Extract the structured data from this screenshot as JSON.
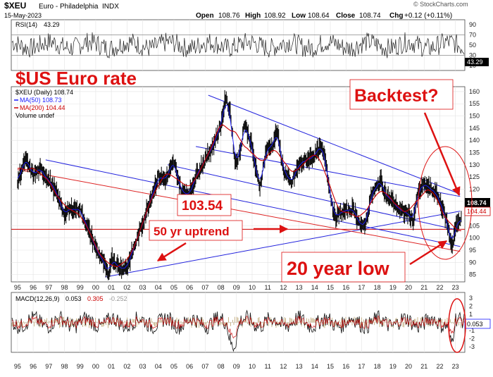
{
  "header": {
    "symbol": "$XEU",
    "name": "Euro - Philadelphia",
    "exchange": "INDX",
    "date": "15-May-2023",
    "open_label": "Open",
    "open": "108.76",
    "high_label": "High",
    "high": "108.92",
    "low_label": "Low",
    "low": "108.64",
    "close_label": "Close",
    "close": "108.74",
    "chg_label": "Chg",
    "chg": "+0.12 (+0.11%)",
    "brand": "© StockCharts.com"
  },
  "rsi": {
    "label": "RSI(14)",
    "value": "43.29",
    "ticks": [
      "90",
      "70",
      "50",
      "30",
      "10"
    ],
    "badge": "43.29",
    "overbought": 70,
    "oversold": 30
  },
  "main": {
    "legend_symbol": "$XEU (Daily) 108.74",
    "legend_ma50": "MA(50) 108.73",
    "legend_ma200": "MA(200) 104.44",
    "legend_volume": "Volume undef",
    "price_badge": "108.74",
    "ma200_badge": "104.44",
    "ticks": [
      "160",
      "155",
      "150",
      "145",
      "140",
      "135",
      "130",
      "125",
      "120",
      "115",
      "110",
      "105",
      "100",
      "95",
      "90",
      "85"
    ]
  },
  "annotations": {
    "title": "$US Euro  rate",
    "backtest": "Backtest?",
    "level": "103.54",
    "uptrend": "50 yr uptrend",
    "low": "20 year low"
  },
  "macd": {
    "label": "MACD(12,26,9)",
    "macd": "0.053",
    "signal": "0.305",
    "hist": "-0.252",
    "ticks": [
      "3",
      "2",
      "1",
      "0",
      "-1",
      "-2",
      "-3"
    ],
    "badge": "0.053"
  },
  "xaxis": {
    "labels": [
      "95",
      "96",
      "97",
      "98",
      "99",
      "00",
      "01",
      "02",
      "03",
      "04",
      "05",
      "06",
      "07",
      "08",
      "09",
      "10",
      "11",
      "12",
      "13",
      "14",
      "15",
      "16",
      "17",
      "18",
      "19",
      "20",
      "21",
      "22",
      "23"
    ]
  },
  "colors": {
    "title_red": "#dd1111",
    "trend_blue": "#2222dd",
    "trend_red": "#dd2222",
    "ma50": "#1a1aff",
    "ma200": "#cc0000"
  },
  "chart_data": {
    "type": "line",
    "title": "$US Euro  rate",
    "series": [
      {
        "name": "$XEU",
        "x": [
          1995.0,
          1995.5,
          1996.0,
          1996.5,
          1997.0,
          1997.5,
          1998.0,
          1998.5,
          1999.0,
          1999.5,
          2000.0,
          2000.5,
          2000.8,
          2001.0,
          2001.5,
          2002.0,
          2002.5,
          2003.0,
          2003.5,
          2004.0,
          2004.5,
          2005.0,
          2005.5,
          2006.0,
          2006.5,
          2007.0,
          2007.5,
          2008.0,
          2008.3,
          2008.6,
          2008.9,
          2009.2,
          2009.5,
          2009.9,
          2010.3,
          2010.5,
          2010.9,
          2011.3,
          2011.6,
          2012.0,
          2012.5,
          2013.0,
          2013.5,
          2014.0,
          2014.4,
          2014.7,
          2015.0,
          2015.3,
          2015.6,
          2016.0,
          2016.5,
          2017.0,
          2017.3,
          2017.6,
          2018.0,
          2018.2,
          2018.6,
          2019.0,
          2019.5,
          2020.0,
          2020.3,
          2020.6,
          2021.0,
          2021.4,
          2021.8,
          2022.2,
          2022.5,
          2022.7,
          2022.8,
          2023.0,
          2023.37
        ],
        "values": [
          123,
          132,
          126,
          128,
          124,
          118,
          110,
          112,
          112,
          104,
          96,
          90,
          84,
          92,
          88,
          88,
          97,
          106,
          116,
          125,
          124,
          131,
          119,
          118,
          127,
          132,
          138,
          146,
          157,
          152,
          131,
          134,
          147,
          140,
          126,
          121,
          136,
          138,
          144,
          128,
          122,
          130,
          132,
          134,
          137,
          132,
          118,
          108,
          110,
          111,
          112,
          104,
          107,
          117,
          121,
          124,
          117,
          115,
          111,
          110,
          107,
          118,
          122,
          120,
          118,
          112,
          105,
          99,
          97,
          104,
          108.74
        ]
      },
      {
        "name": "MA(50)",
        "last": 108.73
      },
      {
        "name": "MA(200)",
        "last": 104.44
      }
    ],
    "ylim": [
      82,
      162
    ],
    "xlim": [
      1994.6,
      2023.6
    ],
    "xlabel": "",
    "ylabel": "",
    "horizontal_level": 103.54,
    "grid": true,
    "legend_placement": "top-left"
  }
}
